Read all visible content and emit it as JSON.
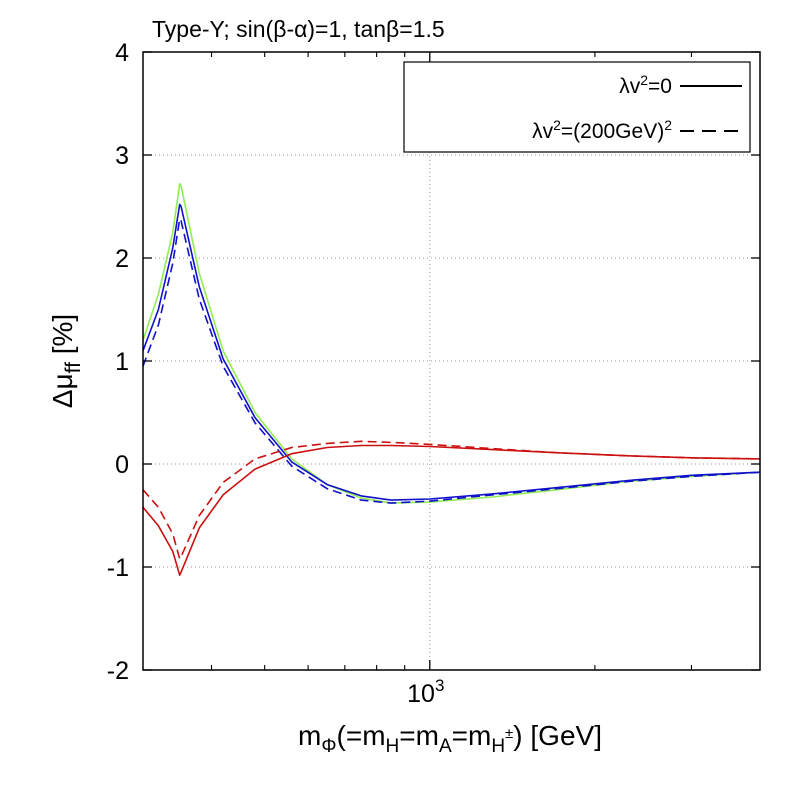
{
  "chart_data": {
    "type": "line",
    "title": "Type-Y; sin(β-α)=1, tanβ=1.5",
    "xscale": "log",
    "xlim": [
      300,
      4000
    ],
    "ylim": [
      -2,
      4
    ],
    "grid": true,
    "yticks": [
      -2,
      -1,
      0,
      1,
      2,
      3,
      4
    ],
    "ytick_labels": [
      "-2",
      "-1",
      "0",
      "1",
      "2",
      "3",
      "4"
    ],
    "xtick_major": 1000,
    "xtick_major_base": "10",
    "xtick_major_exp": "3",
    "xtick_minor": [
      400,
      500,
      600,
      700,
      800,
      900,
      2000,
      3000,
      4000
    ],
    "xlabel_parts": [
      "m",
      "Φ",
      "(=m",
      "H",
      "=m",
      "A",
      "=m",
      "H",
      "±",
      ") [GeV]"
    ],
    "ylabel_parts": [
      "Δμ",
      "ff",
      " [%]"
    ],
    "legend_position": "top-right",
    "legend": [
      {
        "prefix": "λv",
        "sup": "2",
        "rest": "=0",
        "suffix_sup": "",
        "style": "solid"
      },
      {
        "prefix": "λv",
        "sup": "2",
        "rest": "=(200GeV)",
        "suffix_sup": "2",
        "style": "dashed"
      }
    ],
    "series": [
      {
        "name": "green solid",
        "color": "#90ee50",
        "style": "solid",
        "x": [
          300,
          320,
          340,
          350,
          352,
          380,
          420,
          480,
          560,
          650,
          750,
          850,
          1000,
          1300,
          1700,
          2300,
          3000,
          4000
        ],
        "y": [
          1.2,
          1.65,
          2.25,
          2.72,
          2.7,
          1.85,
          1.1,
          0.5,
          0.05,
          -0.2,
          -0.33,
          -0.38,
          -0.37,
          -0.32,
          -0.25,
          -0.17,
          -0.12,
          -0.08
        ]
      },
      {
        "name": "blue solid",
        "color": "#1010cc",
        "style": "solid",
        "x": [
          300,
          320,
          340,
          350,
          352,
          380,
          420,
          480,
          560,
          650,
          750,
          850,
          1000,
          1300,
          1700,
          2300,
          3000,
          4000
        ],
        "y": [
          1.1,
          1.5,
          2.1,
          2.52,
          2.5,
          1.72,
          1.02,
          0.45,
          0.02,
          -0.2,
          -0.31,
          -0.35,
          -0.34,
          -0.29,
          -0.23,
          -0.16,
          -0.11,
          -0.08
        ]
      },
      {
        "name": "blue dashed",
        "color": "#1010cc",
        "style": "dashed",
        "x": [
          300,
          320,
          340,
          350,
          352,
          380,
          420,
          480,
          560,
          650,
          750,
          850,
          1000,
          1300,
          1700,
          2300,
          3000,
          4000
        ],
        "y": [
          0.95,
          1.35,
          1.95,
          2.38,
          2.36,
          1.6,
          0.95,
          0.4,
          -0.02,
          -0.24,
          -0.35,
          -0.38,
          -0.36,
          -0.3,
          -0.24,
          -0.17,
          -0.12,
          -0.08
        ]
      },
      {
        "name": "red solid",
        "color": "#cc1010",
        "style": "solid",
        "x": [
          300,
          320,
          340,
          350,
          352,
          380,
          420,
          480,
          560,
          650,
          750,
          850,
          1000,
          1300,
          1700,
          2300,
          3000,
          4000
        ],
        "y": [
          -0.42,
          -0.6,
          -0.85,
          -1.08,
          -1.05,
          -0.62,
          -0.3,
          -0.05,
          0.1,
          0.16,
          0.18,
          0.18,
          0.17,
          0.14,
          0.11,
          0.08,
          0.06,
          0.05
        ]
      },
      {
        "name": "red dashed",
        "color": "#cc1010",
        "style": "dashed",
        "x": [
          300,
          320,
          340,
          350,
          352,
          380,
          420,
          480,
          560,
          650,
          750,
          850,
          1000,
          1300,
          1700,
          2300,
          3000,
          4000
        ],
        "y": [
          -0.25,
          -0.42,
          -0.68,
          -0.92,
          -0.9,
          -0.5,
          -0.18,
          0.05,
          0.16,
          0.2,
          0.22,
          0.21,
          0.19,
          0.15,
          0.11,
          0.08,
          0.06,
          0.05
        ]
      }
    ]
  }
}
